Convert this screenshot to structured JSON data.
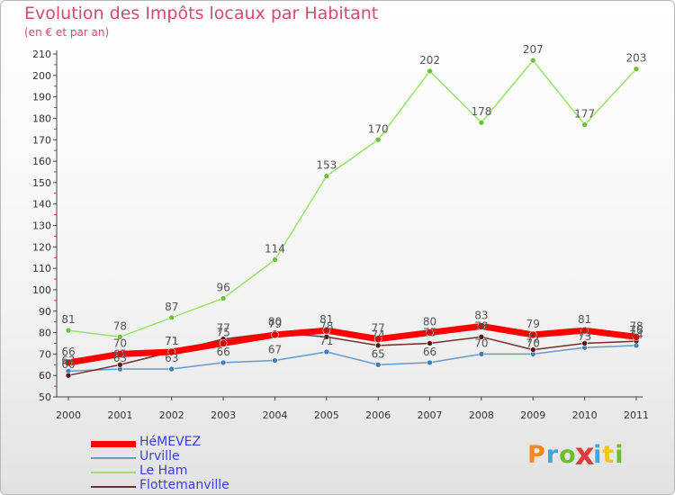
{
  "chart_data": {
    "type": "line",
    "title": "Evolution des Impôts locaux par Habitant",
    "subtitle": "(en € et par an)",
    "categories": [
      "2000",
      "2001",
      "2002",
      "2003",
      "2004",
      "2005",
      "2006",
      "2007",
      "2008",
      "2009",
      "2010",
      "2011"
    ],
    "ylim": [
      50,
      210
    ],
    "ytick_step": 10,
    "grid": false,
    "legend_position": "bottom-left",
    "series": [
      {
        "name": "Le Ham",
        "color": "#99e26a",
        "marker": "#6cc13a",
        "width": 1.5,
        "values": [
          81,
          78,
          87,
          96,
          114,
          153,
          170,
          202,
          178,
          207,
          177,
          203
        ]
      },
      {
        "name": "Urville",
        "color": "#6699cc",
        "marker": "#3c7fbf",
        "width": 1.5,
        "values": [
          62,
          63,
          63,
          66,
          67,
          71,
          65,
          66,
          70,
          70,
          73,
          74
        ]
      },
      {
        "name": "Flottemanville",
        "color": "#7a2a2a",
        "marker": "#5a1616",
        "width": 1.5,
        "values": [
          60,
          65,
          71,
          77,
          80,
          78,
          74,
          75,
          78,
          72,
          75,
          76
        ]
      },
      {
        "name": "HéMEVEZ",
        "color": "#ff0000",
        "marker": "#dd0000",
        "width": 7,
        "values": [
          66,
          70,
          71,
          75,
          79,
          81,
          77,
          80,
          83,
          79,
          81,
          78
        ]
      }
    ],
    "legend_order": [
      "HéMEVEZ",
      "Urville",
      "Le Ham",
      "Flottemanville"
    ]
  },
  "brand": {
    "letters": [
      "P",
      "r",
      "o",
      "x",
      "i",
      "t",
      "i"
    ],
    "colors": [
      "#f28a1e",
      "#3aa8e0",
      "#6cbf2a",
      "#e23b3b",
      "#3aa8e0",
      "#f2c41e",
      "#6cbf2a"
    ]
  }
}
